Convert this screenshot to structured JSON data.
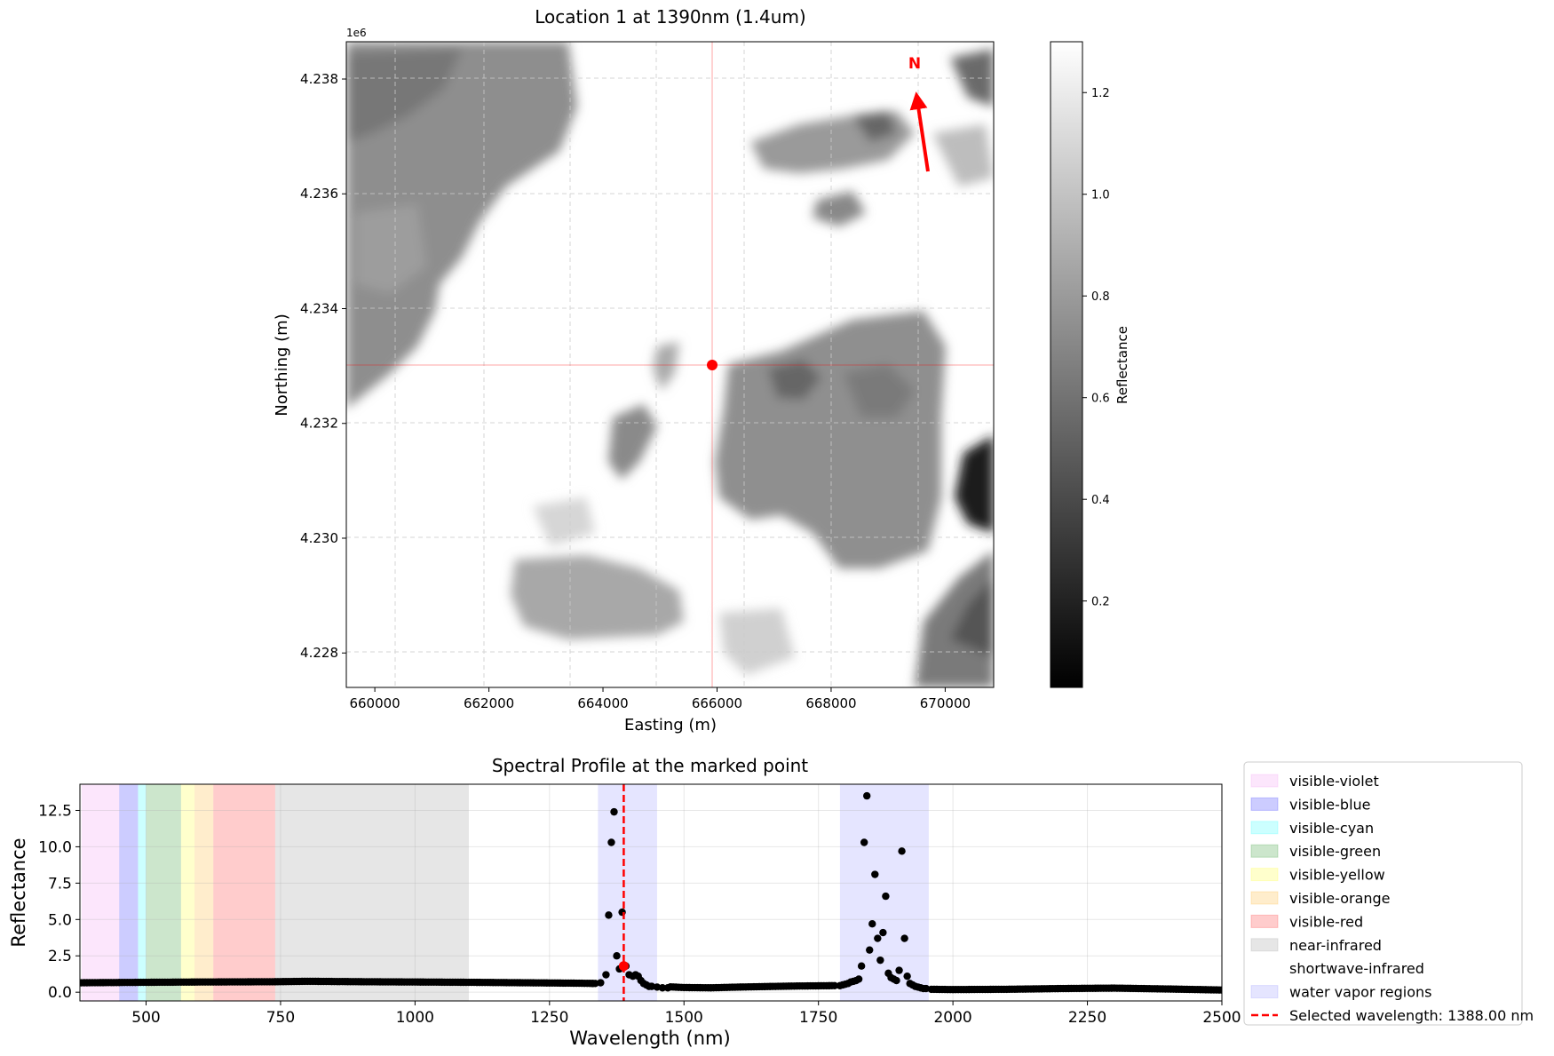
{
  "figure": {
    "map_title": "Location 1 at 1390nm (1.4um)",
    "profile_title": "Spectral Profile at the marked point"
  },
  "chart_data": [
    {
      "type": "heatmap",
      "title": "Location 1 at 1390nm (1.4um)",
      "xlabel": "Easting (m)",
      "ylabel": "Northing (m)",
      "xlim": [
        659500,
        670850
      ],
      "ylim": [
        4227400,
        4238650
      ],
      "xticks": [
        660000,
        662000,
        664000,
        666000,
        668000,
        670000
      ],
      "xtick_labels": [
        "660000",
        "662000",
        "664000",
        "666000",
        "668000",
        "670000"
      ],
      "yticks": [
        4228000,
        4230000,
        4232000,
        4234000,
        4236000,
        4238000
      ],
      "ytick_labels": [
        "4.228",
        "4.230",
        "4.232",
        "4.234",
        "4.236",
        "4.238"
      ],
      "y_offset_label": "1e6",
      "grid": true,
      "colormap": "gray",
      "colorbar": {
        "label": "Reflectance",
        "range": [
          0.03,
          1.3
        ],
        "ticks": [
          0.2,
          0.4,
          0.6,
          0.8,
          1.0,
          1.2
        ],
        "tick_labels": [
          "0.2",
          "0.4",
          "0.6",
          "0.8",
          "1.0",
          "1.2"
        ]
      },
      "marked_point": {
        "easting": 665950,
        "northing": 4233000,
        "color": "#ff0000"
      },
      "north_arrow": {
        "label": "N",
        "color": "#ff0000"
      }
    },
    {
      "type": "scatter",
      "title": "Spectral Profile at the marked point",
      "xlabel": "Wavelength (nm)",
      "ylabel": "Reflectance",
      "xlim": [
        377,
        2500
      ],
      "ylim": [
        -0.6,
        14.3
      ],
      "xticks": [
        500,
        750,
        1000,
        1250,
        1500,
        1750,
        2000,
        2250,
        2500
      ],
      "xtick_labels": [
        "500",
        "750",
        "1000",
        "1250",
        "1500",
        "1750",
        "2000",
        "2250",
        "2500"
      ],
      "yticks": [
        0,
        2.5,
        5,
        7.5,
        10,
        12.5
      ],
      "ytick_labels": [
        "0.0",
        "2.5",
        "5.0",
        "7.5",
        "10.0",
        "12.5"
      ],
      "grid": true,
      "legend_position": "outside right",
      "regions": [
        {
          "name": "visible-violet",
          "start": 380,
          "end": 450,
          "color": "#ee82ee",
          "alpha": 0.2
        },
        {
          "name": "visible-blue",
          "start": 450,
          "end": 485,
          "color": "#0000ff",
          "alpha": 0.2
        },
        {
          "name": "visible-cyan",
          "start": 485,
          "end": 500,
          "color": "#00ffff",
          "alpha": 0.2
        },
        {
          "name": "visible-green",
          "start": 500,
          "end": 565,
          "color": "#008000",
          "alpha": 0.2
        },
        {
          "name": "visible-yellow",
          "start": 565,
          "end": 590,
          "color": "#ffff00",
          "alpha": 0.2
        },
        {
          "name": "visible-orange",
          "start": 590,
          "end": 625,
          "color": "#ffa500",
          "alpha": 0.2
        },
        {
          "name": "visible-red",
          "start": 625,
          "end": 740,
          "color": "#ff0000",
          "alpha": 0.2
        },
        {
          "name": "near-infrared",
          "start": 740,
          "end": 1100,
          "color": "#808080",
          "alpha": 0.2
        },
        {
          "name": "shortwave-infrared",
          "start": 1100,
          "end": 2500,
          "color": "#ffffff",
          "alpha": 0.2
        },
        {
          "name": "water vapor regions",
          "start": 1340,
          "end": 1450,
          "color": "#0000ff",
          "alpha": 0.1
        },
        {
          "name": "water vapor regions",
          "start": 1790,
          "end": 1955,
          "color": "#0000ff",
          "alpha": 0.1
        }
      ],
      "selected_wavelength": {
        "value": 1388,
        "label": "Selected wavelength: 1388.00 nm",
        "color": "#ff0000"
      },
      "selected_point": {
        "x": 1388,
        "y": 1.8
      },
      "series": [
        {
          "marker_color": "#000000",
          "x": [
            1330,
            1345,
            1355,
            1360,
            1365,
            1370,
            1375,
            1380,
            1385,
            1392,
            1398,
            1405,
            1410,
            1415,
            1420,
            1425,
            1430,
            1435,
            1440,
            1450,
            1460,
            1470,
            1780,
            1790,
            1795,
            1800,
            1805,
            1810,
            1815,
            1820,
            1825,
            1830,
            1835,
            1840,
            1845,
            1850,
            1855,
            1860,
            1865,
            1870,
            1875,
            1880,
            1885,
            1890,
            1895,
            1900,
            1905,
            1910,
            1915,
            1920,
            1925,
            1930,
            1935,
            1940,
            1945,
            1950,
            1960
          ],
          "y": [
            0.6,
            0.65,
            1.2,
            5.3,
            10.3,
            12.4,
            2.5,
            1.6,
            5.5,
            1.8,
            1.2,
            1.1,
            1.2,
            1.1,
            0.8,
            0.6,
            0.5,
            0.4,
            0.4,
            0.35,
            0.3,
            0.3,
            0.45,
            0.45,
            0.5,
            0.55,
            0.6,
            0.7,
            0.75,
            0.8,
            0.9,
            1.8,
            10.3,
            13.5,
            2.9,
            4.7,
            8.1,
            3.7,
            2.2,
            4.1,
            6.6,
            1.3,
            1.0,
            0.9,
            0.8,
            1.5,
            9.7,
            3.7,
            1.1,
            0.6,
            0.5,
            0.4,
            0.35,
            0.3,
            0.25,
            0.25,
            0.2
          ]
        }
      ],
      "baseline_profile": {
        "x": [
          380,
          500,
          600,
          740,
          800,
          900,
          1000,
          1100,
          1200,
          1300,
          1340,
          1500,
          1550,
          1600,
          1700,
          1780,
          1960,
          2000,
          2100,
          2200,
          2300,
          2400,
          2500
        ],
        "y": [
          0.65,
          0.68,
          0.7,
          0.72,
          0.75,
          0.72,
          0.7,
          0.68,
          0.65,
          0.62,
          0.6,
          0.32,
          0.3,
          0.35,
          0.42,
          0.45,
          0.2,
          0.18,
          0.2,
          0.25,
          0.28,
          0.22,
          0.15
        ]
      }
    }
  ]
}
